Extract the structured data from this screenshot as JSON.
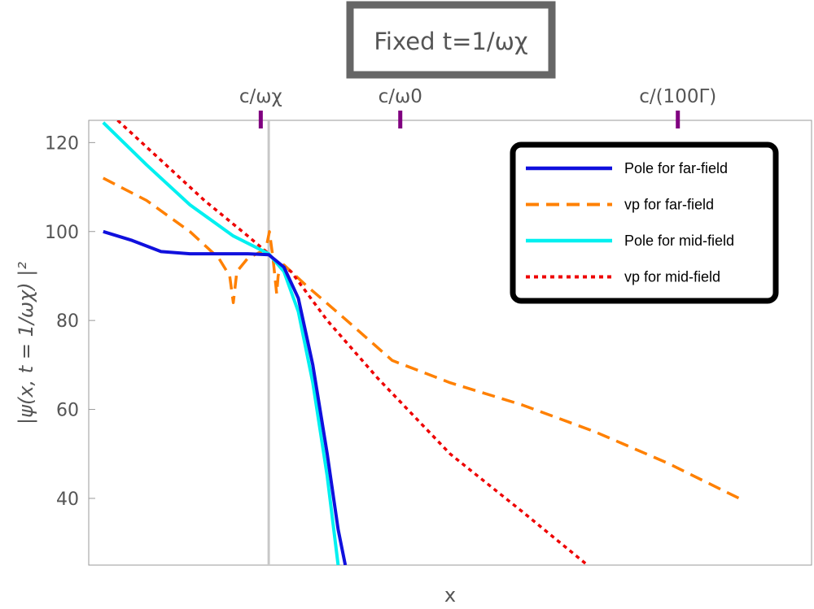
{
  "chart_data": {
    "type": "line",
    "title": "Fixed t=1/ωχ",
    "xlabel": "x",
    "ylabel": "|ψ(x, t = 1/ωχ) |²",
    "ylim": [
      25,
      125
    ],
    "y_ticks": [
      40,
      60,
      80,
      100,
      120
    ],
    "x_ticks": [],
    "x_range": [
      0,
      1
    ],
    "grid": false,
    "legend_placement": "top-right",
    "markers": [
      {
        "label": "c/ωχ",
        "x": 0.238
      },
      {
        "label": "c/ω0",
        "x": 0.431
      },
      {
        "label": "c/(100Γ)",
        "x": 0.815
      }
    ],
    "reference_line_x": 0.249,
    "series": [
      {
        "name": "Pole for far-field",
        "color": "#1010dd",
        "dash": "solid",
        "x": [
          0.02,
          0.06,
          0.1,
          0.14,
          0.18,
          0.22,
          0.249,
          0.27,
          0.29,
          0.31,
          0.33,
          0.345,
          0.355
        ],
        "values": [
          100,
          98,
          95.5,
          95,
          95,
          95,
          94.8,
          92,
          85,
          70,
          50,
          33,
          25
        ]
      },
      {
        "name": "vp for far-field",
        "color": "#ff8000",
        "dash": "dashed",
        "x": [
          0.02,
          0.08,
          0.14,
          0.18,
          0.195,
          0.2,
          0.205,
          0.22,
          0.245,
          0.25,
          0.255,
          0.26,
          0.262,
          0.265,
          0.27,
          0.3,
          0.35,
          0.42,
          0.5,
          0.6,
          0.7,
          0.8,
          0.9
        ],
        "values": [
          112,
          107,
          100,
          94,
          90,
          84,
          91,
          94,
          96,
          100,
          94,
          86,
          90,
          92,
          92.5,
          88,
          81,
          71,
          66,
          61,
          55,
          48,
          40
        ]
      },
      {
        "name": "Pole for mid-field",
        "color": "#00f0f0",
        "dash": "solid",
        "x": [
          0.02,
          0.08,
          0.14,
          0.2,
          0.249,
          0.27,
          0.29,
          0.31,
          0.33,
          0.345
        ],
        "values": [
          124.5,
          115,
          106,
          99,
          95,
          91,
          82,
          66,
          45,
          25
        ]
      },
      {
        "name": "vp for mid-field",
        "color": "#ee0000",
        "dash": "dotted",
        "x": [
          0.04,
          0.1,
          0.16,
          0.22,
          0.249,
          0.26,
          0.28,
          0.33,
          0.4,
          0.5,
          0.6,
          0.69
        ],
        "values": [
          125,
          116,
          107,
          99,
          95,
          93,
          91,
          80,
          67,
          50,
          37,
          25
        ]
      }
    ]
  }
}
